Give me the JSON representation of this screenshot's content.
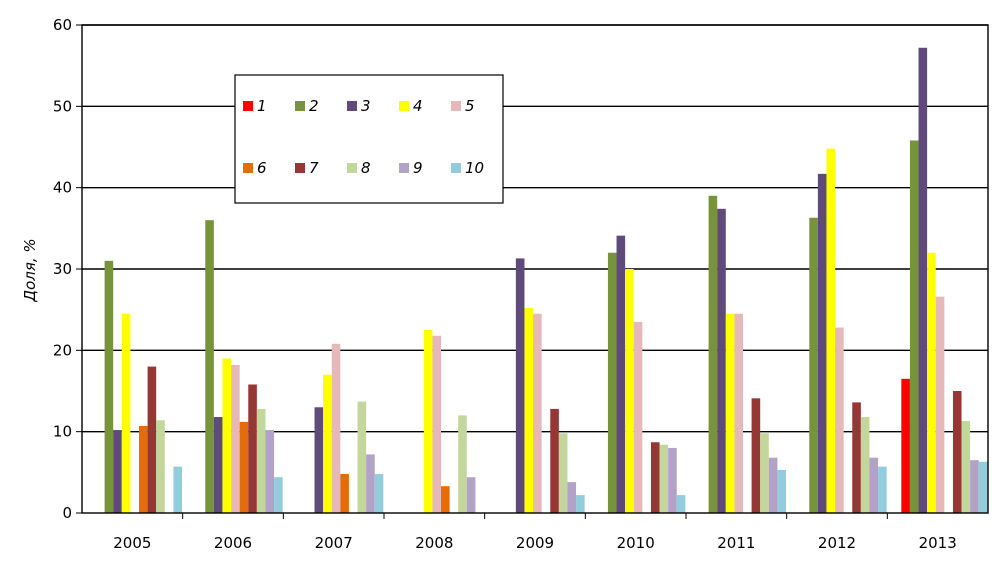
{
  "chart_data": {
    "type": "bar",
    "ylabel": "Доля, %",
    "xlabel": "",
    "ylim": [
      0,
      60
    ],
    "yticks": [
      "0",
      "10",
      "20",
      "30",
      "40",
      "50",
      "60"
    ],
    "grid": true,
    "legend_position": "top-left inside plot",
    "categories": [
      "2005",
      "2006",
      "2007",
      "2008",
      "2009",
      "2010",
      "2011",
      "2012",
      "2013"
    ],
    "series": [
      {
        "name": "1",
        "color": "#ff0000",
        "values": [
          0,
          0,
          0,
          0,
          0,
          0,
          0,
          0,
          16.5
        ]
      },
      {
        "name": "2",
        "color": "#77933c",
        "values": [
          31,
          36,
          0,
          0,
          0,
          32,
          39,
          36.3,
          45.8
        ]
      },
      {
        "name": "3",
        "color": "#604a7b",
        "values": [
          10.2,
          11.8,
          13,
          0,
          31.3,
          34.1,
          37.4,
          41.7,
          57.2
        ]
      },
      {
        "name": "4",
        "color": "#ffff00",
        "values": [
          24.5,
          19,
          17,
          22.5,
          25.2,
          30,
          24.5,
          44.8,
          32
        ]
      },
      {
        "name": "5",
        "color": "#e6b9b8",
        "values": [
          0,
          18.2,
          20.8,
          21.8,
          24.5,
          23.5,
          24.5,
          22.8,
          26.6
        ]
      },
      {
        "name": "6",
        "color": "#e46c0a",
        "values": [
          10.7,
          11.2,
          4.8,
          3.3,
          0,
          0,
          0,
          0,
          0
        ]
      },
      {
        "name": "7",
        "color": "#953735",
        "values": [
          18,
          15.8,
          0,
          0,
          12.8,
          8.7,
          14.1,
          13.6,
          15
        ]
      },
      {
        "name": "8",
        "color": "#c3d69b",
        "values": [
          11.4,
          12.8,
          13.7,
          12,
          9.8,
          8.4,
          9.8,
          11.8,
          11.3
        ]
      },
      {
        "name": "9",
        "color": "#b3a2c7",
        "values": [
          0,
          10.2,
          7.2,
          4.4,
          3.8,
          8,
          6.8,
          6.8,
          6.5
        ]
      },
      {
        "name": "10",
        "color": "#93cddd",
        "values": [
          5.7,
          4.4,
          4.8,
          0,
          2.2,
          2.2,
          5.3,
          5.7,
          6.3
        ]
      }
    ]
  }
}
